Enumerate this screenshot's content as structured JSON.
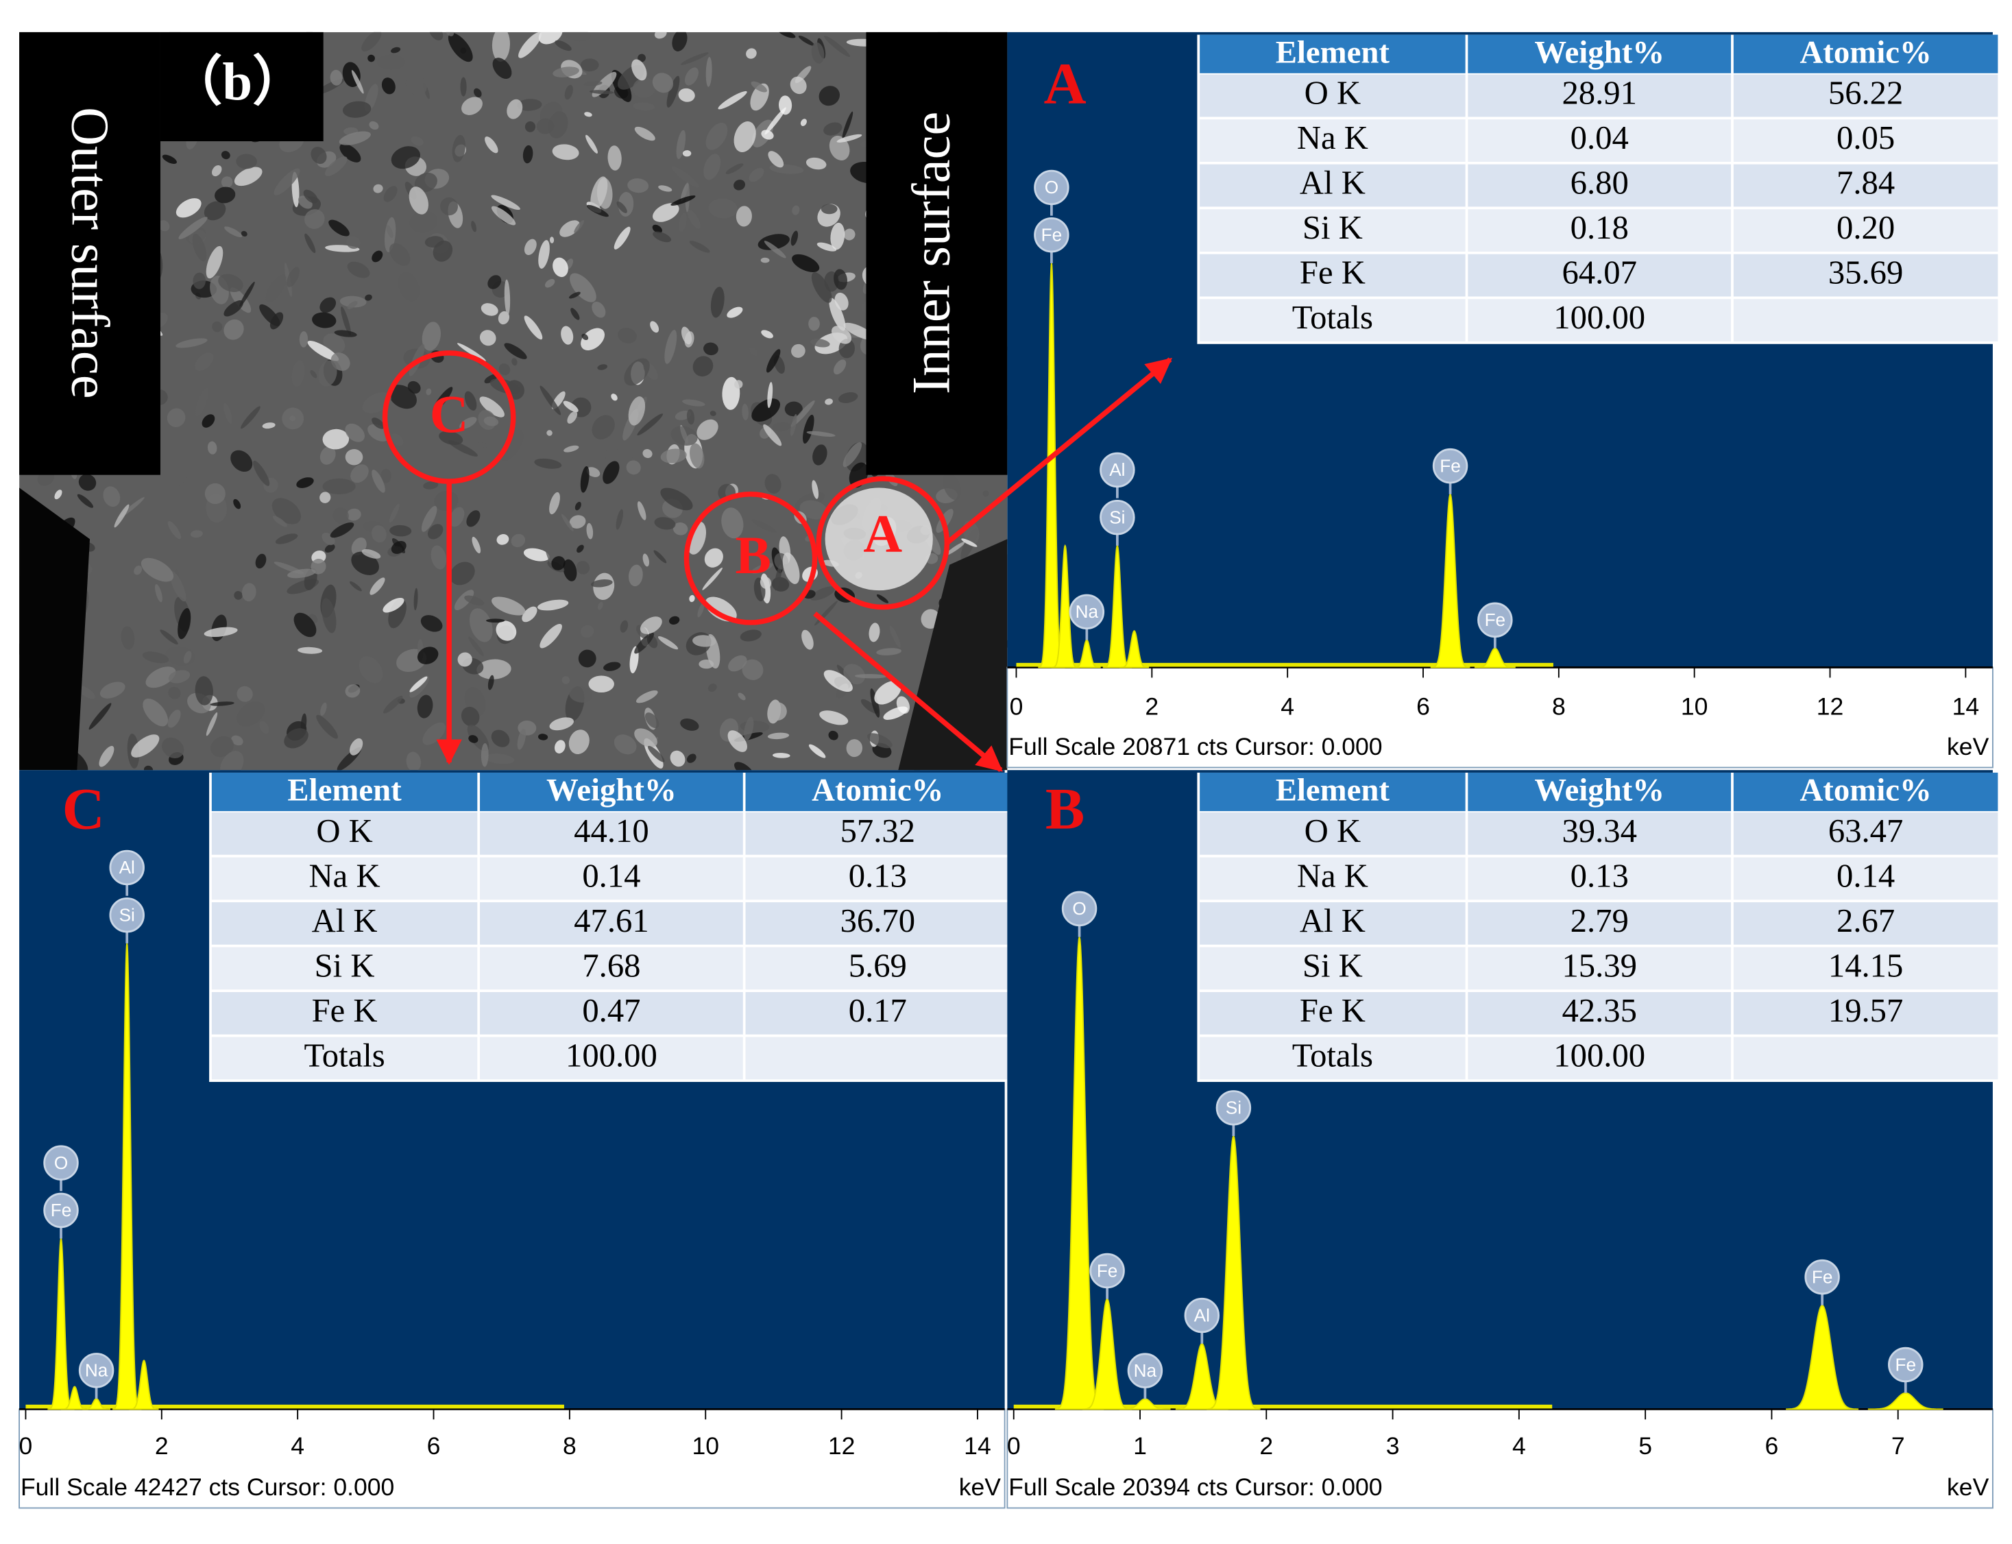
{
  "image": {
    "label": "（b）",
    "outer": "Outer surface",
    "inner": "Inner surface",
    "regions": [
      "C",
      "B",
      "A"
    ]
  },
  "panels": [
    {
      "label": "A",
      "table": {
        "header": [
          "Element",
          "Weight%",
          "Atomic%"
        ],
        "rows": [
          [
            "O K",
            "28.91",
            "56.22"
          ],
          [
            "Na K",
            "0.04",
            "0.05"
          ],
          [
            "Al K",
            "6.80",
            "7.84"
          ],
          [
            "Si K",
            "0.18",
            "0.20"
          ],
          [
            "Fe K",
            "64.07",
            "35.69"
          ],
          [
            "Totals",
            "100.00"
          ]
        ]
      },
      "spectrum": {
        "xlim": [
          0,
          14.4
        ],
        "xticks": [
          0,
          2,
          4,
          6,
          8,
          10,
          12,
          14
        ],
        "ylim": [
          0,
          20871
        ],
        "unit": "keV",
        "footer": "Full Scale 20871 cts Cursor: 0.000",
        "peaks": [
          {
            "label": "O",
            "x": 0.52,
            "counts": 13280
          },
          {
            "label": "Fe",
            "x": 0.72,
            "counts": 4000
          },
          {
            "label": "Na",
            "x": 1.04,
            "counts": 900
          },
          {
            "label": "Al",
            "x": 1.49,
            "counts": 4000
          },
          {
            "label": "Si",
            "x": 1.74,
            "counts": 1200
          },
          {
            "label": "Fe",
            "x": 6.4,
            "counts": 5690
          },
          {
            "label": "Fe",
            "x": 7.06,
            "counts": 630
          }
        ]
      }
    },
    {
      "label": "C",
      "table": {
        "header": [
          "Element",
          "Weight%",
          "Atomic%"
        ],
        "rows": [
          [
            "O K",
            "44.10",
            "57.32"
          ],
          [
            "Na K",
            "0.14",
            "0.13"
          ],
          [
            "Al K",
            "47.61",
            "36.70"
          ],
          [
            "Si K",
            "7.68",
            "5.69"
          ],
          [
            "Fe K",
            "0.47",
            "0.17"
          ],
          [
            "Totals",
            "100.00"
          ]
        ]
      },
      "spectrum": {
        "xlim": [
          0,
          14.4
        ],
        "xticks": [
          0,
          2,
          4,
          6,
          8,
          10,
          12,
          14
        ],
        "ylim": [
          0,
          42427
        ],
        "unit": "keV",
        "footer": "Full Scale 42427 cts Cursor: 0.000",
        "peaks": [
          {
            "label": "O",
            "x": 0.52,
            "counts": 11370
          },
          {
            "label": "Fe",
            "x": 0.72,
            "counts": 1500
          },
          {
            "label": "Na",
            "x": 1.04,
            "counts": 700
          },
          {
            "label": "Al",
            "x": 1.49,
            "counts": 31050
          },
          {
            "label": "Si",
            "x": 1.74,
            "counts": 3250
          }
        ]
      }
    },
    {
      "label": "B",
      "table": {
        "header": [
          "Element",
          "Weight%",
          "Atomic%"
        ],
        "rows": [
          [
            "O K",
            "39.34",
            "63.47"
          ],
          [
            "Na K",
            "0.13",
            "0.14"
          ],
          [
            "Al K",
            "2.79",
            "2.67"
          ],
          [
            "Si K",
            "15.39",
            "14.15"
          ],
          [
            "Fe K",
            "42.35",
            "19.57"
          ],
          [
            "Totals",
            "100.00"
          ]
        ]
      },
      "spectrum": {
        "xlim": [
          0,
          7.75
        ],
        "xticks": [
          0,
          1,
          2,
          3,
          4,
          5,
          6,
          7
        ],
        "ylim": [
          0,
          20394
        ],
        "unit": "keV",
        "footer": "Full Scale 20394 cts Cursor: 0.000",
        "peaks": [
          {
            "label": "O",
            "x": 0.52,
            "counts": 15130
          },
          {
            "label": "Fe",
            "x": 0.74,
            "counts": 3530
          },
          {
            "label": "Na",
            "x": 1.04,
            "counts": 330
          },
          {
            "label": "Al",
            "x": 1.49,
            "counts": 2100
          },
          {
            "label": "Si",
            "x": 1.74,
            "counts": 8750
          },
          {
            "label": "Fe",
            "x": 6.4,
            "counts": 3330
          },
          {
            "label": "Fe",
            "x": 7.06,
            "counts": 520
          }
        ]
      }
    }
  ]
}
